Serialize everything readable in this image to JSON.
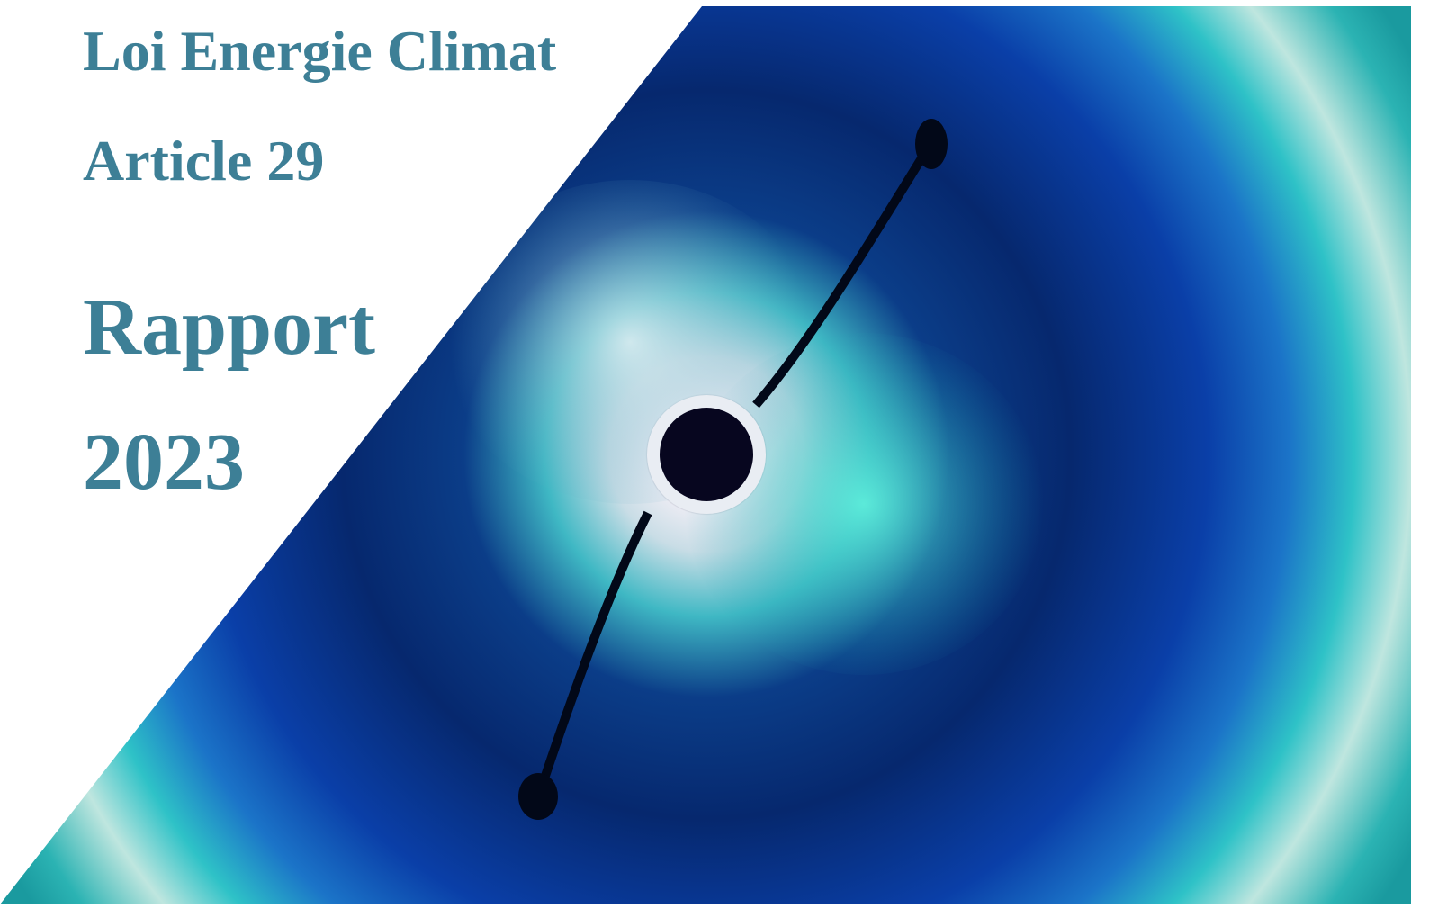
{
  "cover": {
    "law": "Loi Energie Climat",
    "article": "Article 29",
    "report": "Rapport",
    "year": "2023"
  }
}
